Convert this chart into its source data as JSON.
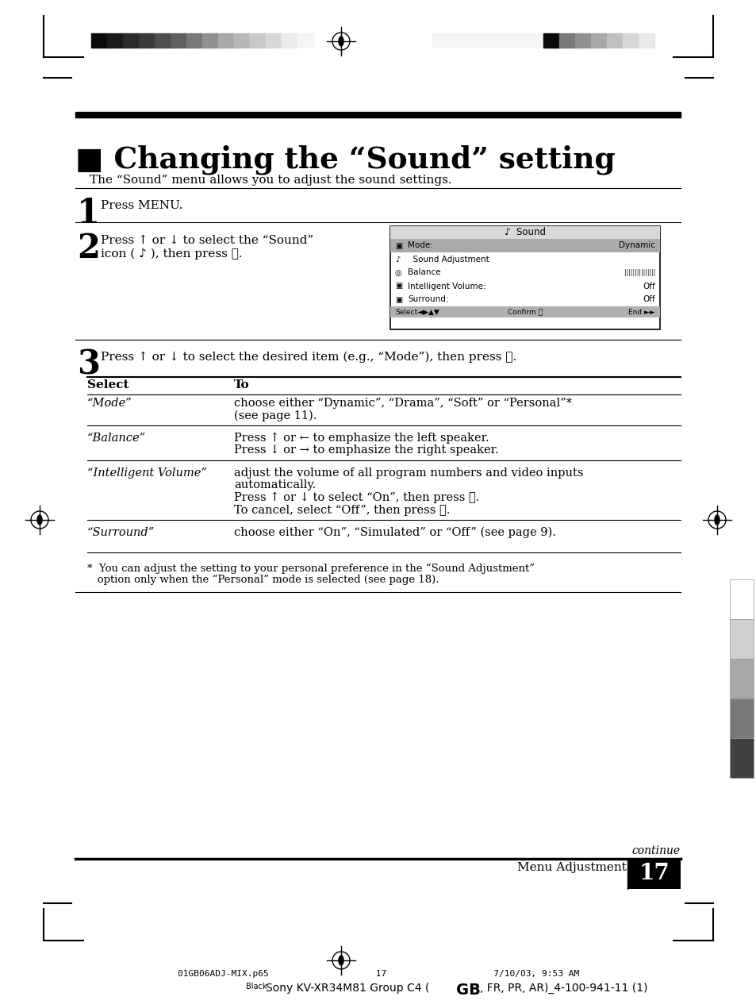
{
  "bg_color": "#ffffff",
  "title": "■ Changing the “Sound” setting",
  "subtitle": "The “Sound” menu allows you to adjust the sound settings.",
  "step1_num": "1",
  "step1_text": "Press MENU.",
  "step2_num": "2",
  "step2_line1": "Press ↑ or ↓ to select the “Sound”",
  "step2_line2": "icon ( ♪ ), then press ＋.",
  "step3_num": "3",
  "step3_text": "Press ↑ or ↓ to select the desired item (e.g., “Mode”), then press ＋.",
  "table_header_select": "Select",
  "table_header_to": "To",
  "table_rows": [
    {
      "select": "“Mode”",
      "to_lines": [
        "choose either “Dynamic”, “Drama”, “Soft” or “Personal”*",
        "(see page 11)."
      ]
    },
    {
      "select": "“Balance”",
      "to_lines": [
        "Press ↑ or ← to emphasize the left speaker.",
        "Press ↓ or → to emphasize the right speaker."
      ]
    },
    {
      "select": "“Intelligent Volume”",
      "to_lines": [
        "adjust the volume of all program numbers and video inputs",
        "automatically.",
        "Press ↑ or ↓ to select “On”, then press ＋.",
        "To cancel, select “Off”, then press ＋."
      ]
    },
    {
      "select": "“Surround”",
      "to_lines": [
        "choose either “On”, “Simulated” or “Off” (see page 9)."
      ]
    }
  ],
  "footnote_lines": [
    "*  You can adjust the setting to your personal preference in the “Sound Adjustment”",
    "   option only when the “Personal” mode is selected (see page 18)."
  ],
  "continue_text": "continue",
  "footer_left": "Menu Adjustment",
  "footer_page": "17",
  "bottom_line1": "01GB06ADJ-MIX.p65                    17                    7/10/03, 9:53 AM",
  "bottom_line2_pre": "Black",
  "bottom_line2_main": "Sony KV-XR34M81 Group C4 (",
  "bottom_line2_bold": "GB",
  "bottom_line2_rest": ", FR, PR, AR)_4-100-941-11 (1)",
  "grayscale_left": [
    "#0a0a0a",
    "#1a1a1a",
    "#2a2a2a",
    "#3a3a3a",
    "#4d4d4d",
    "#606060",
    "#787878",
    "#909090",
    "#a8a8a8",
    "#b8b8b8",
    "#c8c8c8",
    "#d8d8d8",
    "#ebebeb",
    "#f5f5f5"
  ],
  "grayscale_right_pattern": [
    "#f5f5f5",
    "#f5f5f5",
    "#f5f5f5",
    "#f5f5f5",
    "#f5f5f5",
    "#f5f5f5",
    "#f5f5f5",
    "#0a0a0a",
    "#787878",
    "#909090",
    "#a8a8a8",
    "#c0c0c0",
    "#d8d8d8",
    "#e8e8e8"
  ],
  "right_swatches": [
    "#ffffff",
    "#d0d0d0",
    "#a8a8a8",
    "#787878",
    "#404040"
  ],
  "menu_title_icon": "♪",
  "menu_title_text": "Sound",
  "menu_rows": [
    {
      "label": "Mode:",
      "value": "Dynamic",
      "selected": true
    },
    {
      "label": "  Sound Adjustment",
      "value": "",
      "selected": false
    },
    {
      "label": "Balance",
      "value": "|||||||||||||||",
      "selected": false
    },
    {
      "label": "Intelligent Volume:",
      "value": "Off",
      "selected": false
    },
    {
      "label": "Surround:",
      "value": "Off",
      "selected": false
    }
  ],
  "menu_footer": "Select◄▶▲▼    Confirm ＋    End ►►"
}
